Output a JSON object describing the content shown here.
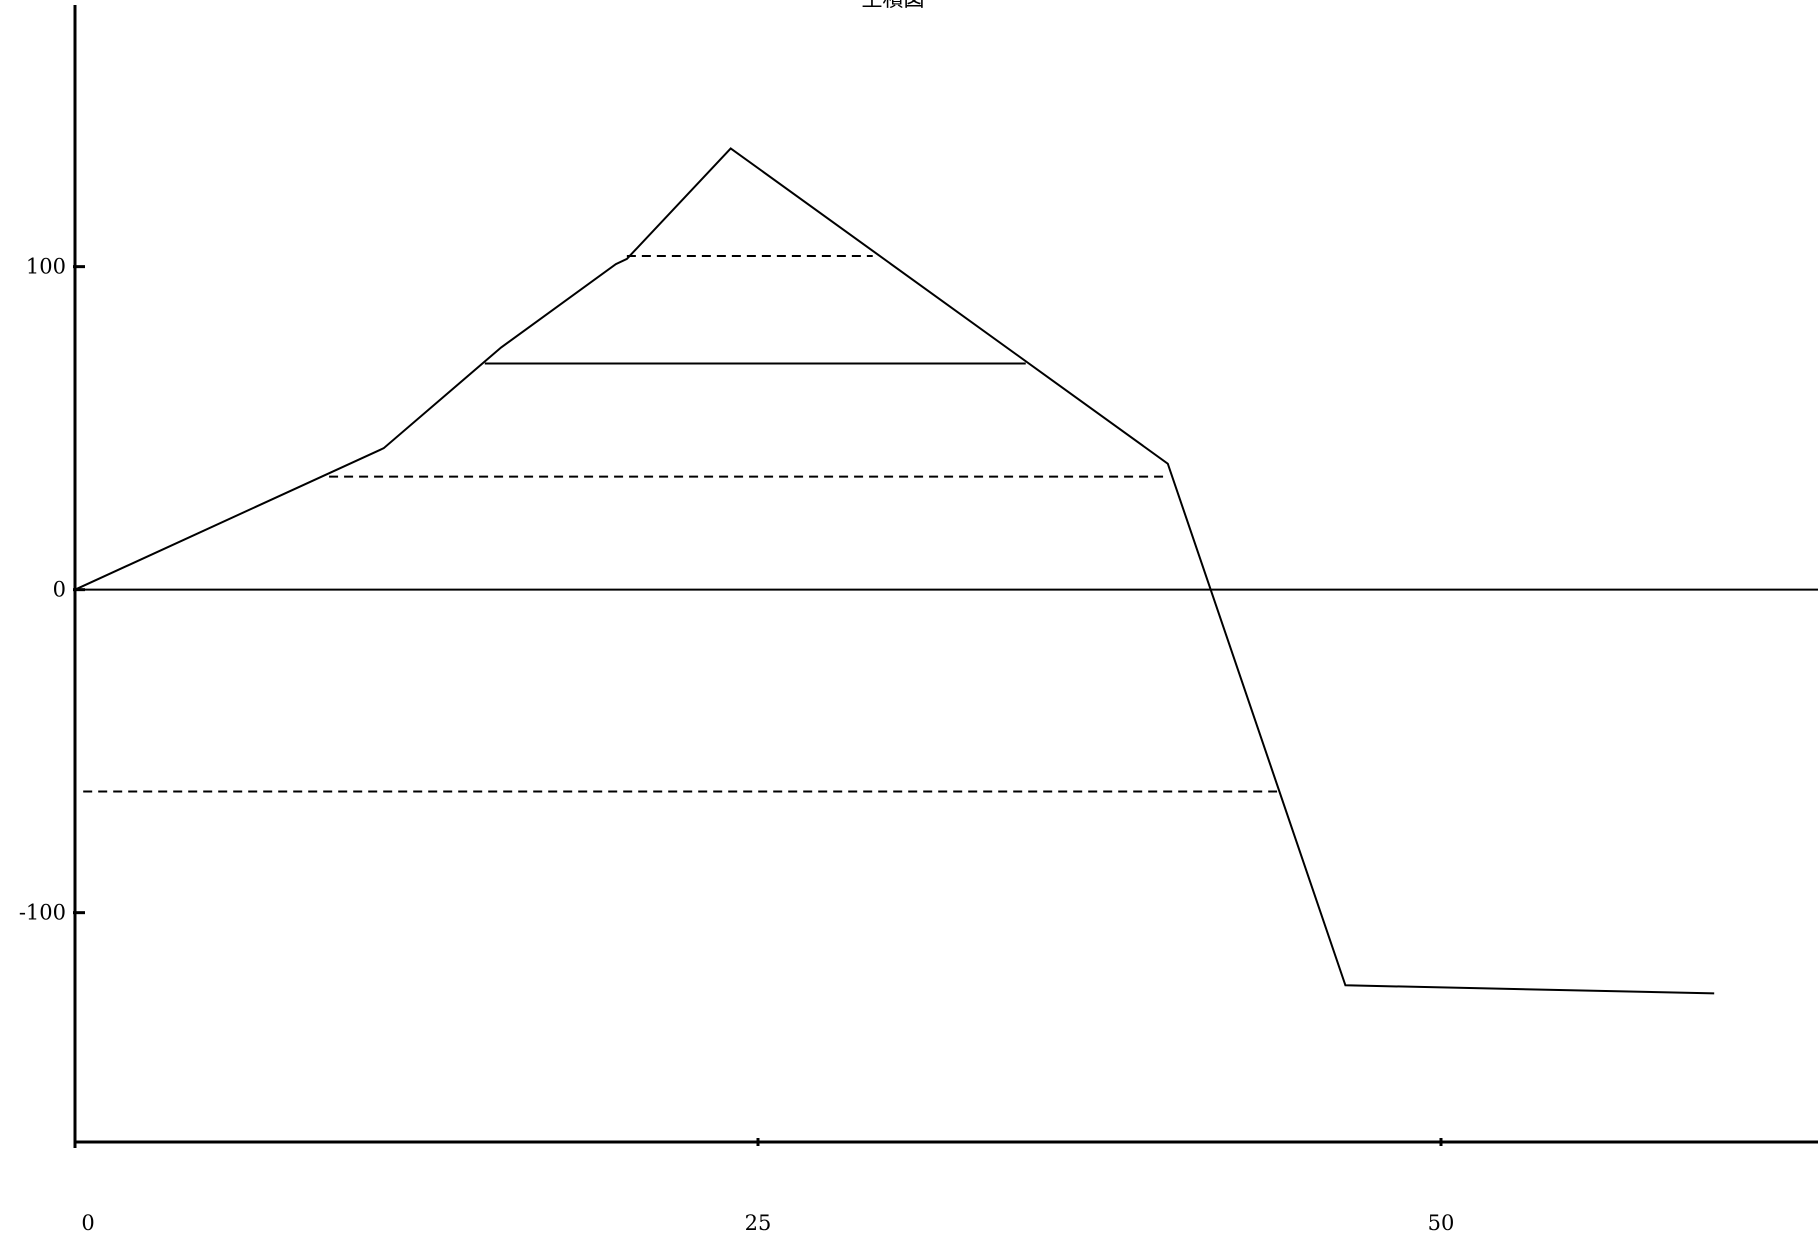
{
  "chart_data": {
    "type": "line",
    "title": "土積図",
    "xlim": [
      0,
      63.8
    ],
    "ylim": [
      -171,
      181
    ],
    "x_ticks": [
      {
        "value": 0,
        "label": "0"
      },
      {
        "value": 25,
        "label": "25"
      },
      {
        "value": 50,
        "label": "50"
      }
    ],
    "y_ticks": [
      {
        "value": 100,
        "label": "100"
      },
      {
        "value": 0,
        "label": "0"
      },
      {
        "value": -100,
        "label": "-100"
      }
    ],
    "zero_line": true,
    "grid": false,
    "colors": {
      "line": "#000000",
      "background": "#ffffff"
    },
    "series": [
      {
        "style": "solid",
        "points": [
          [
            0,
            0
          ],
          [
            11.3,
            43.8
          ],
          [
            15.6,
            75.0
          ],
          [
            19.8,
            100.8
          ],
          [
            20.2,
            102.4
          ],
          [
            24.0,
            136.6
          ],
          [
            40.0,
            39.0
          ],
          [
            46.5,
            -122.5
          ],
          [
            60.0,
            -125.0
          ]
        ]
      }
    ],
    "balance_lines": [
      {
        "style": "dashed",
        "y": 103.3,
        "x1": 20.2,
        "x2": 29.2
      },
      {
        "style": "solid",
        "y": 70.0,
        "x1": 15.0,
        "x2": 34.8
      },
      {
        "style": "dashed",
        "y": 35.0,
        "x1": 9.3,
        "x2": 40.0
      },
      {
        "style": "dashed",
        "y": -62.5,
        "x1": 0.3,
        "x2": 44.0
      }
    ]
  }
}
